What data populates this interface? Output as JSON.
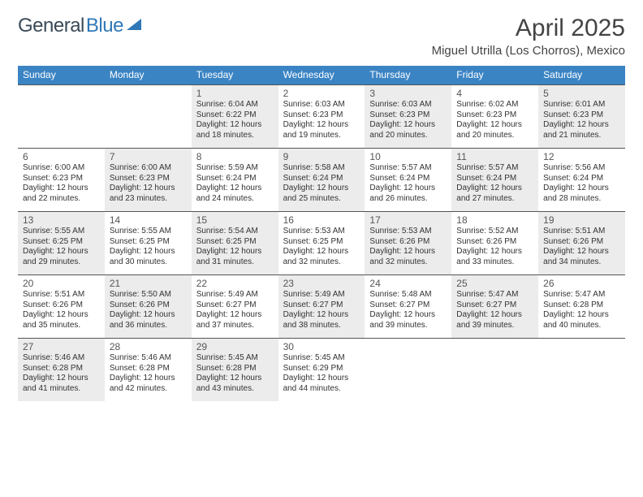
{
  "brand": {
    "part1": "General",
    "part2": "Blue"
  },
  "title": "April 2025",
  "location": "Miguel Utrilla (Los Chorros), Mexico",
  "colors": {
    "header_bg": "#3b84c4",
    "header_text": "#ffffff",
    "shaded_bg": "#ececec",
    "border": "#555555",
    "text": "#333333"
  },
  "day_names": [
    "Sunday",
    "Monday",
    "Tuesday",
    "Wednesday",
    "Thursday",
    "Friday",
    "Saturday"
  ],
  "weeks": [
    [
      {
        "blank": true
      },
      {
        "blank": true
      },
      {
        "num": "1",
        "shaded": true,
        "sunrise": "Sunrise: 6:04 AM",
        "sunset": "Sunset: 6:22 PM",
        "daylight1": "Daylight: 12 hours",
        "daylight2": "and 18 minutes."
      },
      {
        "num": "2",
        "shaded": false,
        "sunrise": "Sunrise: 6:03 AM",
        "sunset": "Sunset: 6:23 PM",
        "daylight1": "Daylight: 12 hours",
        "daylight2": "and 19 minutes."
      },
      {
        "num": "3",
        "shaded": true,
        "sunrise": "Sunrise: 6:03 AM",
        "sunset": "Sunset: 6:23 PM",
        "daylight1": "Daylight: 12 hours",
        "daylight2": "and 20 minutes."
      },
      {
        "num": "4",
        "shaded": false,
        "sunrise": "Sunrise: 6:02 AM",
        "sunset": "Sunset: 6:23 PM",
        "daylight1": "Daylight: 12 hours",
        "daylight2": "and 20 minutes."
      },
      {
        "num": "5",
        "shaded": true,
        "sunrise": "Sunrise: 6:01 AM",
        "sunset": "Sunset: 6:23 PM",
        "daylight1": "Daylight: 12 hours",
        "daylight2": "and 21 minutes."
      }
    ],
    [
      {
        "num": "6",
        "shaded": false,
        "sunrise": "Sunrise: 6:00 AM",
        "sunset": "Sunset: 6:23 PM",
        "daylight1": "Daylight: 12 hours",
        "daylight2": "and 22 minutes."
      },
      {
        "num": "7",
        "shaded": true,
        "sunrise": "Sunrise: 6:00 AM",
        "sunset": "Sunset: 6:23 PM",
        "daylight1": "Daylight: 12 hours",
        "daylight2": "and 23 minutes."
      },
      {
        "num": "8",
        "shaded": false,
        "sunrise": "Sunrise: 5:59 AM",
        "sunset": "Sunset: 6:24 PM",
        "daylight1": "Daylight: 12 hours",
        "daylight2": "and 24 minutes."
      },
      {
        "num": "9",
        "shaded": true,
        "sunrise": "Sunrise: 5:58 AM",
        "sunset": "Sunset: 6:24 PM",
        "daylight1": "Daylight: 12 hours",
        "daylight2": "and 25 minutes."
      },
      {
        "num": "10",
        "shaded": false,
        "sunrise": "Sunrise: 5:57 AM",
        "sunset": "Sunset: 6:24 PM",
        "daylight1": "Daylight: 12 hours",
        "daylight2": "and 26 minutes."
      },
      {
        "num": "11",
        "shaded": true,
        "sunrise": "Sunrise: 5:57 AM",
        "sunset": "Sunset: 6:24 PM",
        "daylight1": "Daylight: 12 hours",
        "daylight2": "and 27 minutes."
      },
      {
        "num": "12",
        "shaded": false,
        "sunrise": "Sunrise: 5:56 AM",
        "sunset": "Sunset: 6:24 PM",
        "daylight1": "Daylight: 12 hours",
        "daylight2": "and 28 minutes."
      }
    ],
    [
      {
        "num": "13",
        "shaded": true,
        "sunrise": "Sunrise: 5:55 AM",
        "sunset": "Sunset: 6:25 PM",
        "daylight1": "Daylight: 12 hours",
        "daylight2": "and 29 minutes."
      },
      {
        "num": "14",
        "shaded": false,
        "sunrise": "Sunrise: 5:55 AM",
        "sunset": "Sunset: 6:25 PM",
        "daylight1": "Daylight: 12 hours",
        "daylight2": "and 30 minutes."
      },
      {
        "num": "15",
        "shaded": true,
        "sunrise": "Sunrise: 5:54 AM",
        "sunset": "Sunset: 6:25 PM",
        "daylight1": "Daylight: 12 hours",
        "daylight2": "and 31 minutes."
      },
      {
        "num": "16",
        "shaded": false,
        "sunrise": "Sunrise: 5:53 AM",
        "sunset": "Sunset: 6:25 PM",
        "daylight1": "Daylight: 12 hours",
        "daylight2": "and 32 minutes."
      },
      {
        "num": "17",
        "shaded": true,
        "sunrise": "Sunrise: 5:53 AM",
        "sunset": "Sunset: 6:26 PM",
        "daylight1": "Daylight: 12 hours",
        "daylight2": "and 32 minutes."
      },
      {
        "num": "18",
        "shaded": false,
        "sunrise": "Sunrise: 5:52 AM",
        "sunset": "Sunset: 6:26 PM",
        "daylight1": "Daylight: 12 hours",
        "daylight2": "and 33 minutes."
      },
      {
        "num": "19",
        "shaded": true,
        "sunrise": "Sunrise: 5:51 AM",
        "sunset": "Sunset: 6:26 PM",
        "daylight1": "Daylight: 12 hours",
        "daylight2": "and 34 minutes."
      }
    ],
    [
      {
        "num": "20",
        "shaded": false,
        "sunrise": "Sunrise: 5:51 AM",
        "sunset": "Sunset: 6:26 PM",
        "daylight1": "Daylight: 12 hours",
        "daylight2": "and 35 minutes."
      },
      {
        "num": "21",
        "shaded": true,
        "sunrise": "Sunrise: 5:50 AM",
        "sunset": "Sunset: 6:26 PM",
        "daylight1": "Daylight: 12 hours",
        "daylight2": "and 36 minutes."
      },
      {
        "num": "22",
        "shaded": false,
        "sunrise": "Sunrise: 5:49 AM",
        "sunset": "Sunset: 6:27 PM",
        "daylight1": "Daylight: 12 hours",
        "daylight2": "and 37 minutes."
      },
      {
        "num": "23",
        "shaded": true,
        "sunrise": "Sunrise: 5:49 AM",
        "sunset": "Sunset: 6:27 PM",
        "daylight1": "Daylight: 12 hours",
        "daylight2": "and 38 minutes."
      },
      {
        "num": "24",
        "shaded": false,
        "sunrise": "Sunrise: 5:48 AM",
        "sunset": "Sunset: 6:27 PM",
        "daylight1": "Daylight: 12 hours",
        "daylight2": "and 39 minutes."
      },
      {
        "num": "25",
        "shaded": true,
        "sunrise": "Sunrise: 5:47 AM",
        "sunset": "Sunset: 6:27 PM",
        "daylight1": "Daylight: 12 hours",
        "daylight2": "and 39 minutes."
      },
      {
        "num": "26",
        "shaded": false,
        "sunrise": "Sunrise: 5:47 AM",
        "sunset": "Sunset: 6:28 PM",
        "daylight1": "Daylight: 12 hours",
        "daylight2": "and 40 minutes."
      }
    ],
    [
      {
        "num": "27",
        "shaded": true,
        "sunrise": "Sunrise: 5:46 AM",
        "sunset": "Sunset: 6:28 PM",
        "daylight1": "Daylight: 12 hours",
        "daylight2": "and 41 minutes."
      },
      {
        "num": "28",
        "shaded": false,
        "sunrise": "Sunrise: 5:46 AM",
        "sunset": "Sunset: 6:28 PM",
        "daylight1": "Daylight: 12 hours",
        "daylight2": "and 42 minutes."
      },
      {
        "num": "29",
        "shaded": true,
        "sunrise": "Sunrise: 5:45 AM",
        "sunset": "Sunset: 6:28 PM",
        "daylight1": "Daylight: 12 hours",
        "daylight2": "and 43 minutes."
      },
      {
        "num": "30",
        "shaded": false,
        "sunrise": "Sunrise: 5:45 AM",
        "sunset": "Sunset: 6:29 PM",
        "daylight1": "Daylight: 12 hours",
        "daylight2": "and 44 minutes."
      },
      {
        "blank": true
      },
      {
        "blank": true
      },
      {
        "blank": true
      }
    ]
  ]
}
